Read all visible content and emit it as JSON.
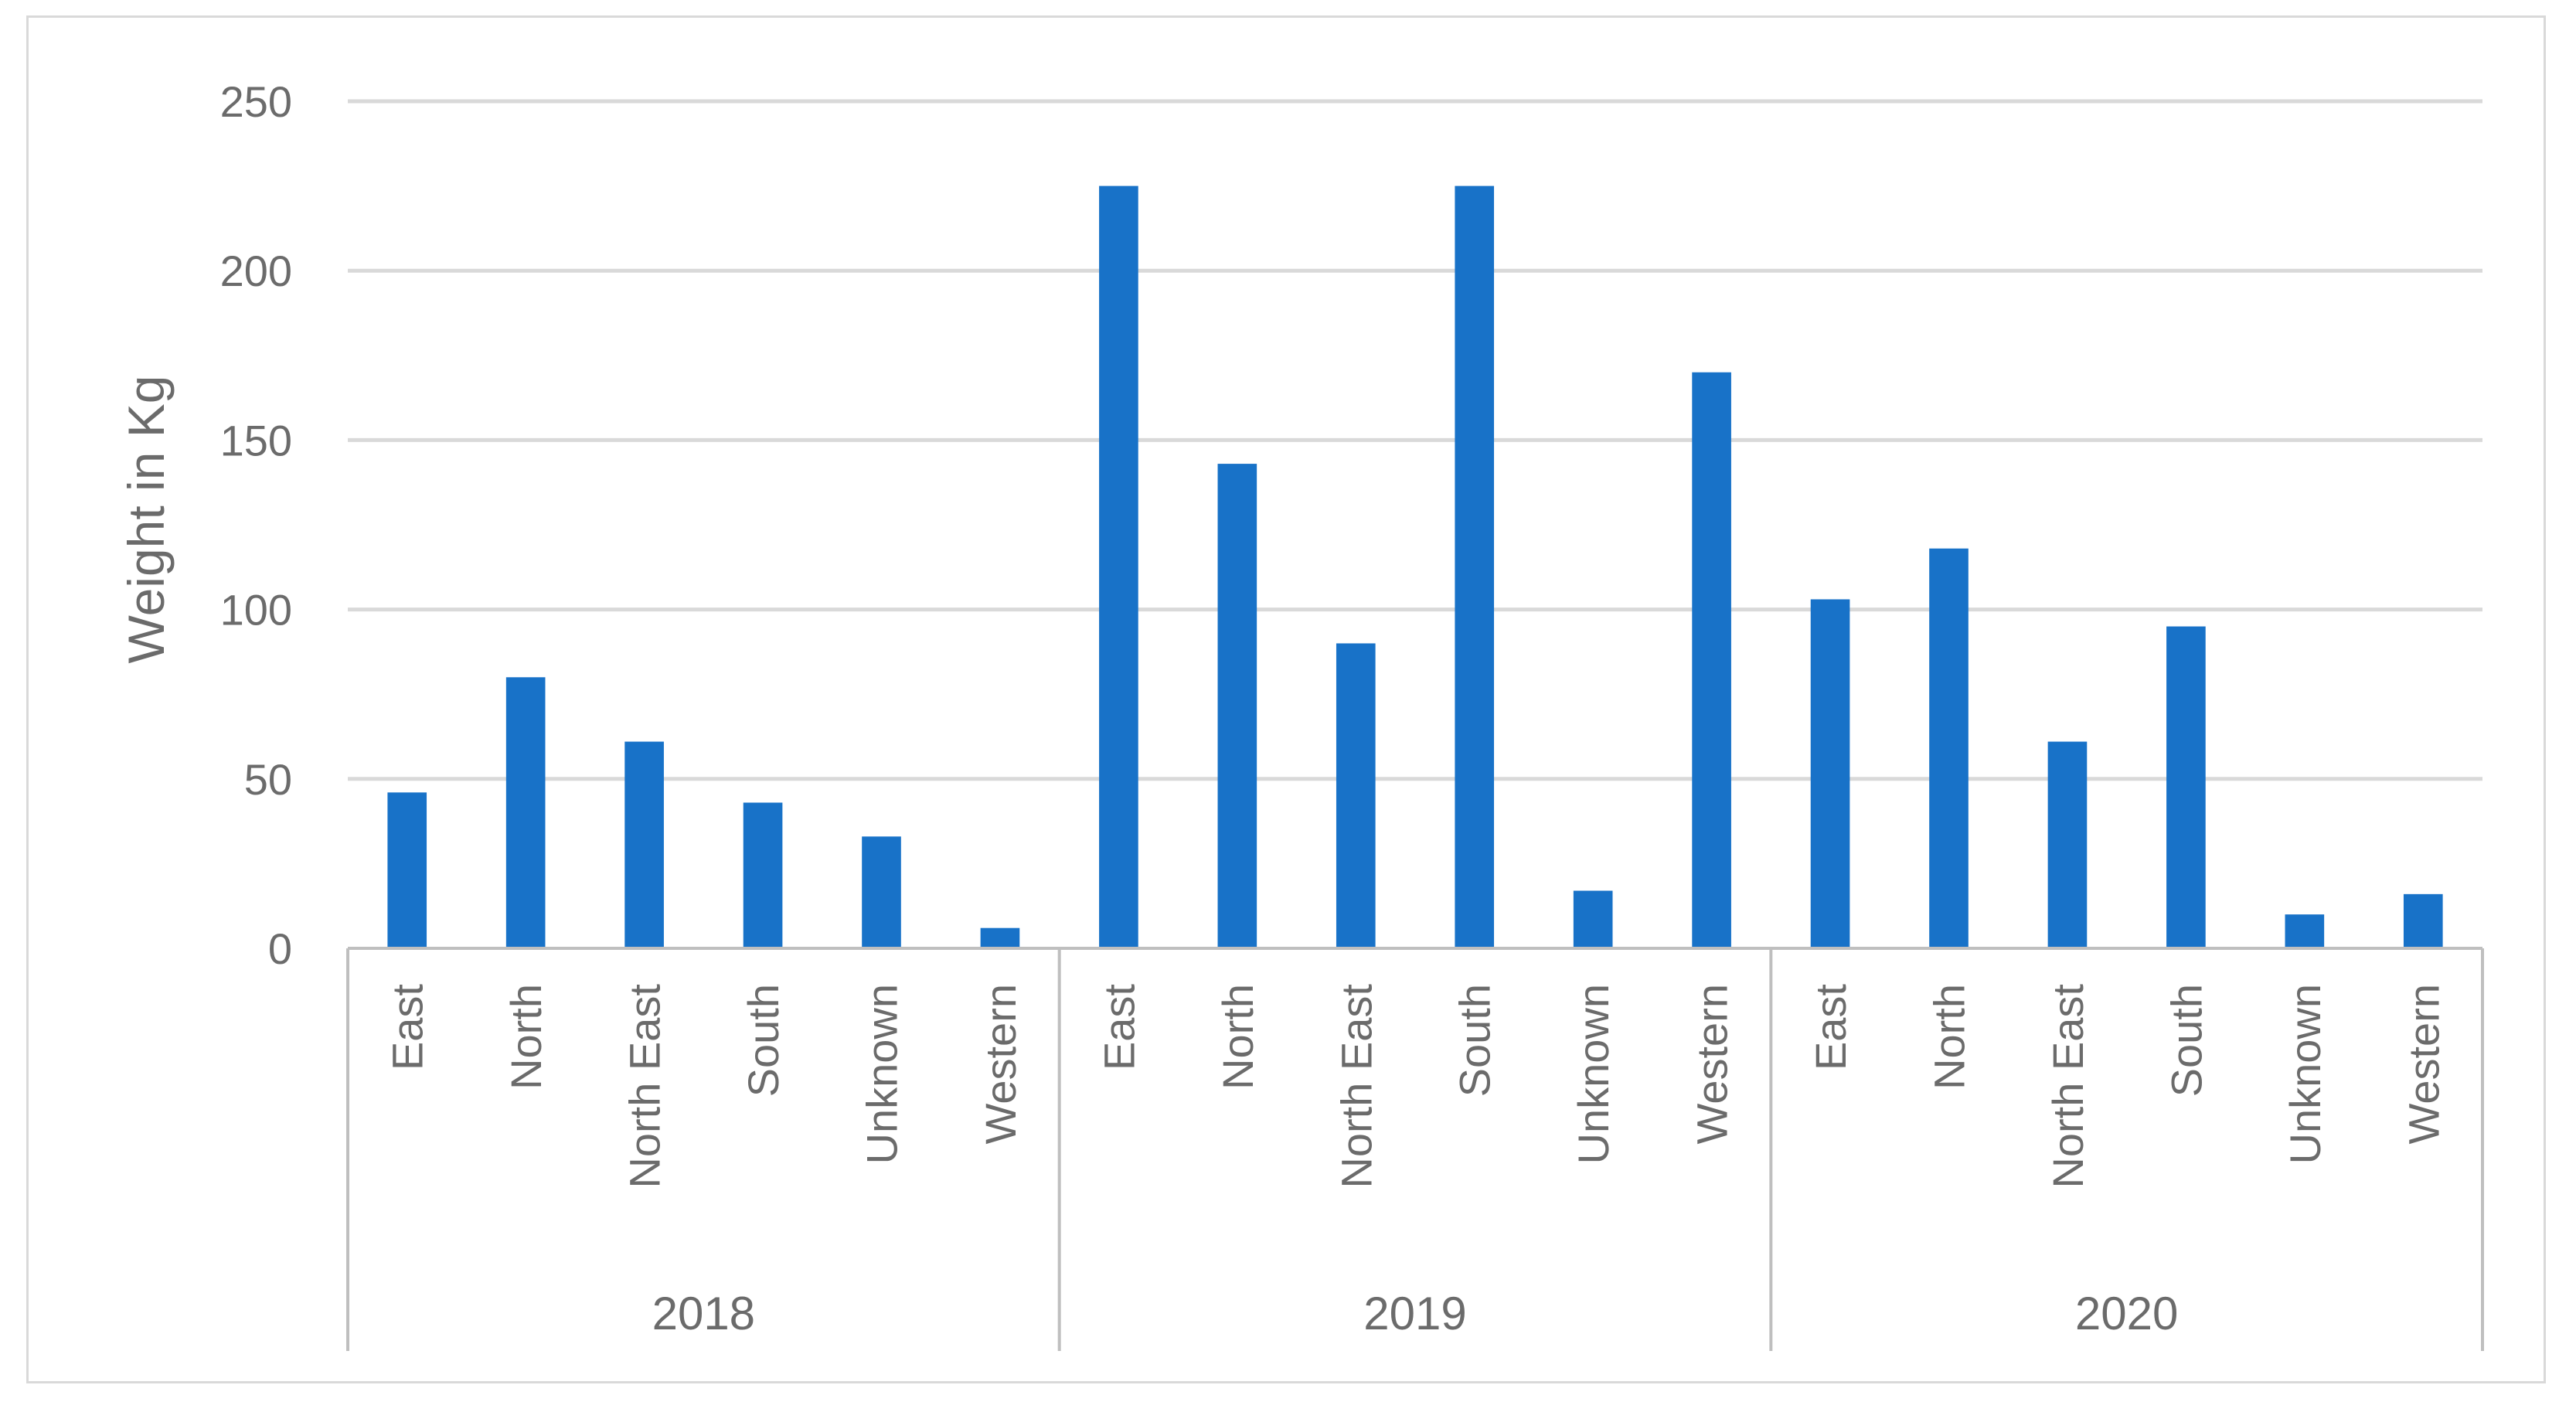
{
  "chart_data": {
    "type": "bar",
    "ylabel": "Weight in Kg",
    "xlabel": "",
    "ylim": [
      0,
      250
    ],
    "yticks": [
      0,
      50,
      100,
      150,
      200,
      250
    ],
    "grid": true,
    "legend": "none",
    "bar_color": "#1872c8",
    "groups": [
      {
        "label": "2018",
        "categories": [
          "East",
          "North",
          "North East",
          "South",
          "Unknown",
          "Western"
        ],
        "values": [
          46,
          80,
          61,
          43,
          33,
          6
        ]
      },
      {
        "label": "2019",
        "categories": [
          "East",
          "North",
          "North East",
          "South",
          "Unknown",
          "Western"
        ],
        "values": [
          225,
          143,
          90,
          225,
          17,
          170
        ]
      },
      {
        "label": "2020",
        "categories": [
          "East",
          "North",
          "North East",
          "South",
          "Unknown",
          "Western"
        ],
        "values": [
          103,
          118,
          61,
          95,
          10,
          16
        ]
      }
    ]
  }
}
